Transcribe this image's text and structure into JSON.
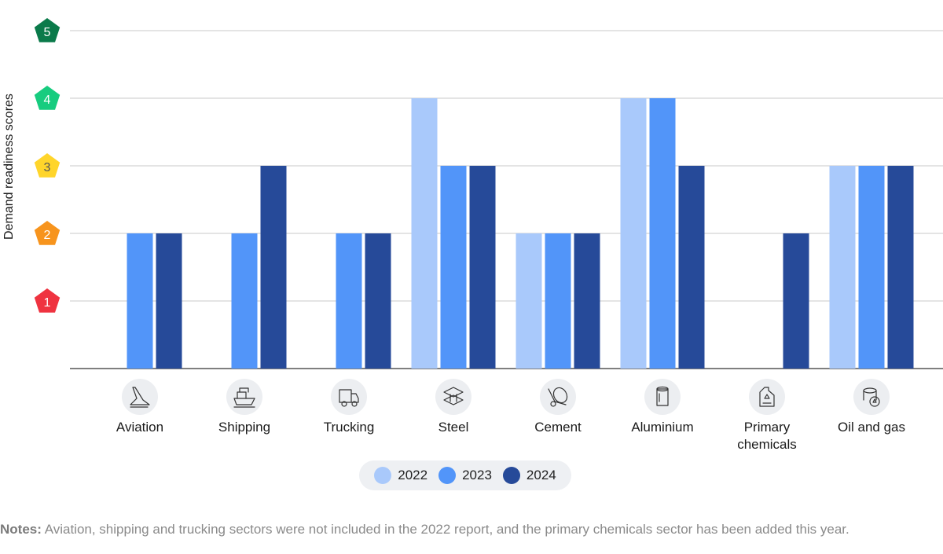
{
  "chart_data": {
    "type": "bar",
    "ylabel": "Demand readiness scores",
    "ylim": [
      0,
      5
    ],
    "y_ticks": [
      {
        "value": 1,
        "label": "1",
        "color": "#ef3340"
      },
      {
        "value": 2,
        "label": "2",
        "color": "#f7941d"
      },
      {
        "value": 3,
        "label": "3",
        "color": "#ffd52b"
      },
      {
        "value": 4,
        "label": "4",
        "color": "#17cc7f"
      },
      {
        "value": 5,
        "label": "5",
        "color": "#0a7a4a"
      }
    ],
    "grid": true,
    "legend_position": "bottom-center",
    "categories": [
      {
        "label": "Aviation",
        "icon": "airplane-icon"
      },
      {
        "label": "Shipping",
        "icon": "ship-icon"
      },
      {
        "label": "Trucking",
        "icon": "truck-icon"
      },
      {
        "label": "Steel",
        "icon": "steel-beam-icon"
      },
      {
        "label": "Cement",
        "icon": "cement-mixer-icon"
      },
      {
        "label": "Aluminium",
        "icon": "aluminium-can-icon"
      },
      {
        "label": "Primary chemicals",
        "icon": "chemical-canister-icon"
      },
      {
        "label": "Oil and gas",
        "icon": "oil-barrel-icon"
      }
    ],
    "series": [
      {
        "name": "2022",
        "color": "#a9c9fb",
        "values": [
          null,
          null,
          null,
          4,
          2,
          4,
          null,
          3
        ]
      },
      {
        "name": "2023",
        "color": "#5295f9",
        "values": [
          2,
          2,
          2,
          3,
          2,
          4,
          null,
          3
        ]
      },
      {
        "name": "2024",
        "color": "#264a99",
        "values": [
          2,
          3,
          2,
          3,
          2,
          3,
          2,
          3
        ]
      }
    ]
  },
  "notes": {
    "label": "Notes:",
    "text": " Aviation, shipping and trucking sectors were not included in the 2022 report, and the primary chemicals sector has been added this year."
  }
}
